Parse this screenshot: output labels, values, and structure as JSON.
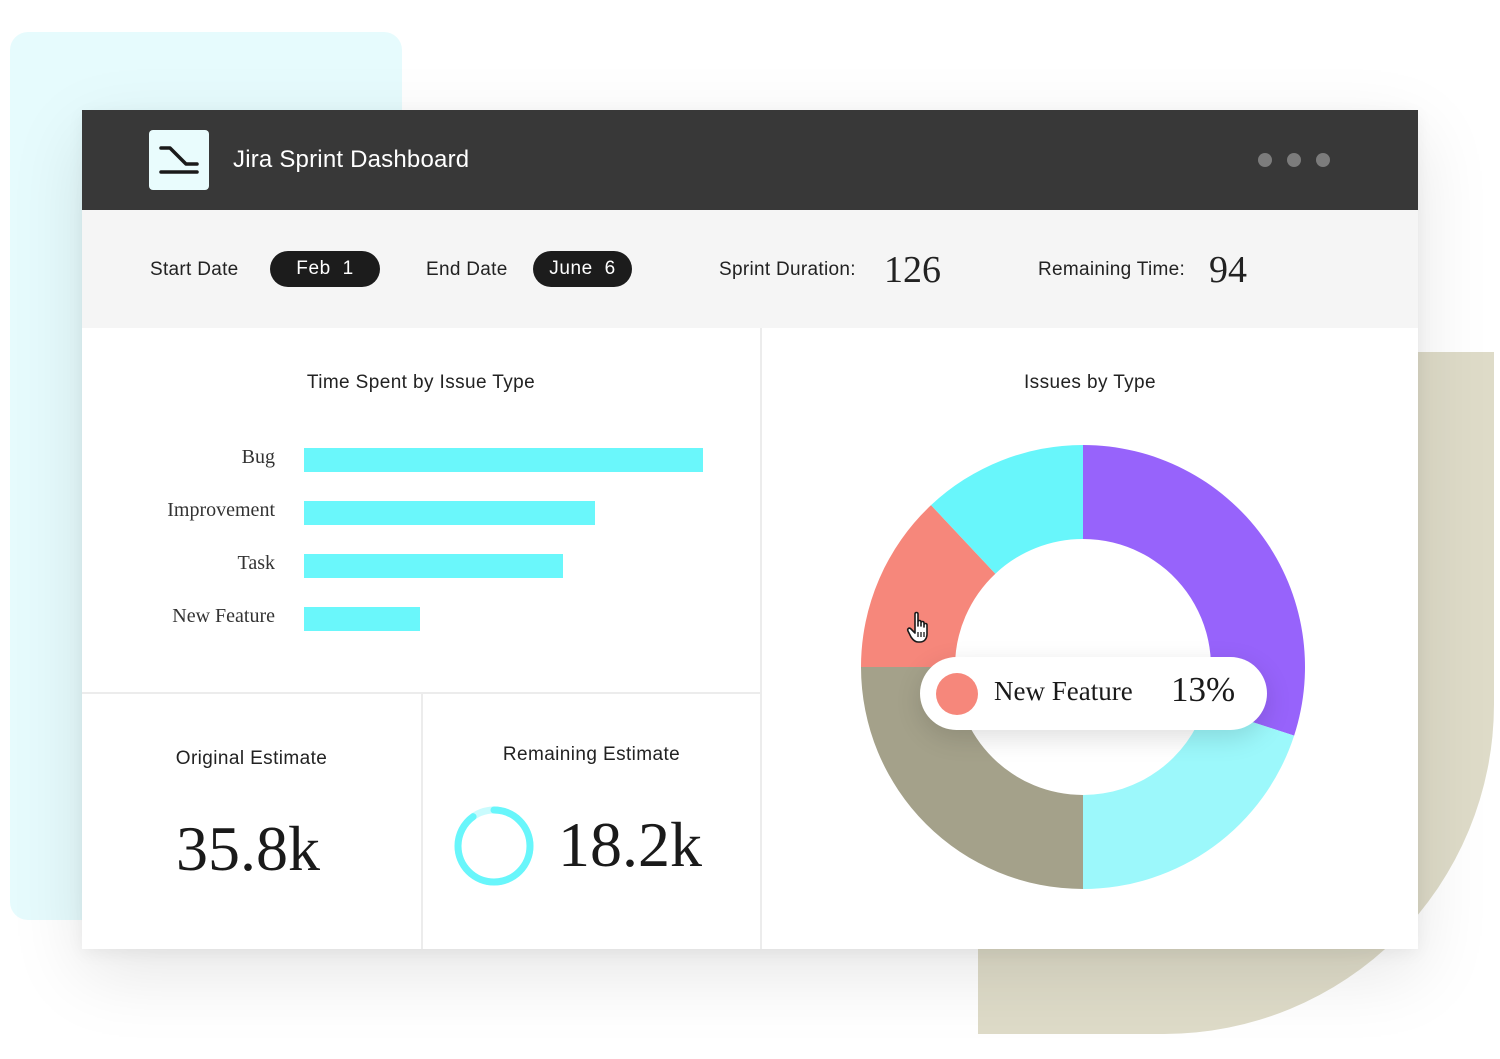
{
  "colors": {
    "titlebar": "#383838",
    "bar_fill": "#6af7fb",
    "accent_purple": "#9763fb",
    "accent_cyan": "#68f6fb",
    "accent_light_cyan": "#9cf8fb",
    "accent_salmon": "#f6877b",
    "accent_olive": "#a4a18a"
  },
  "header": {
    "title": "Jira Sprint Dashboard",
    "logo_icon": "sprint-line-icon",
    "menu_icon": "more-dots-icon"
  },
  "toolbar": {
    "start_date_label": "Start Date",
    "start_date_value": "Feb  1",
    "end_date_label": "End Date",
    "end_date_value": "June  6",
    "duration_label": "Sprint Duration:",
    "duration_value": "126",
    "remaining_label": "Remaining Time:",
    "remaining_value": "94"
  },
  "time_spent": {
    "title": "Time Spent by Issue Type",
    "chart_data": {
      "type": "bar",
      "orientation": "horizontal",
      "title": "Time Spent by Issue Type",
      "categories": [
        "Bug",
        "Improvement",
        "Task",
        "New Feature"
      ],
      "values": [
        100,
        73,
        65,
        29
      ],
      "xlim": [
        0,
        100
      ]
    }
  },
  "original_estimate": {
    "title": "Original Estimate",
    "value": "35.8k"
  },
  "remaining_estimate": {
    "title": "Remaining Estimate",
    "value": "18.2k",
    "progress_fraction": 0.9
  },
  "issues_by_type": {
    "title": "Issues by Type",
    "chart_data": {
      "type": "pie",
      "style": "donut",
      "title": "Issues by Type",
      "slices": [
        {
          "color": "#9763fb",
          "value": 30
        },
        {
          "color": "#9cf8fb",
          "value": 20
        },
        {
          "color": "#a4a18a",
          "value": 25
        },
        {
          "name": "New Feature",
          "color": "#f6877b",
          "value": 13
        },
        {
          "color": "#68f6fb",
          "value": 12
        }
      ]
    },
    "tooltip": {
      "label": "New Feature",
      "value": "13%"
    }
  }
}
